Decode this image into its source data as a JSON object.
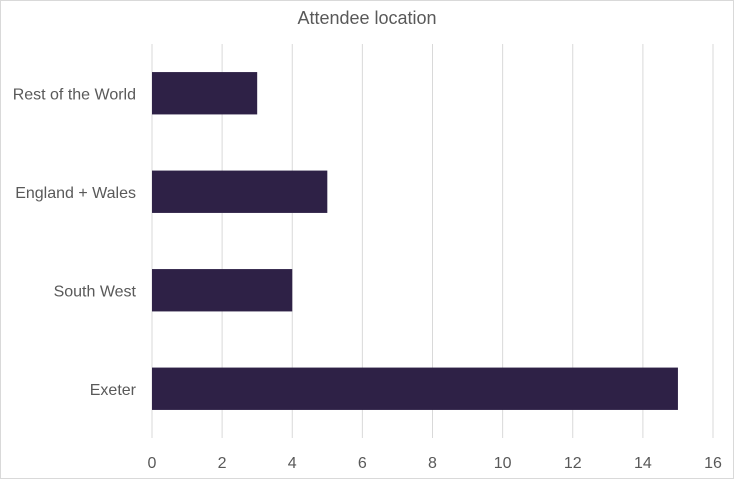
{
  "chart_data": {
    "type": "bar",
    "orientation": "horizontal",
    "title": "Attendee location",
    "categories": [
      "Exeter",
      "South West",
      "England + Wales",
      "Rest of the World"
    ],
    "values": [
      15,
      4,
      5,
      3
    ],
    "xlim": [
      0,
      16
    ],
    "xticks": [
      0,
      2,
      4,
      6,
      8,
      10,
      12,
      14,
      16
    ],
    "grid": true,
    "bar_color": "#2e2146",
    "grid_color": "#d9d9d9"
  }
}
